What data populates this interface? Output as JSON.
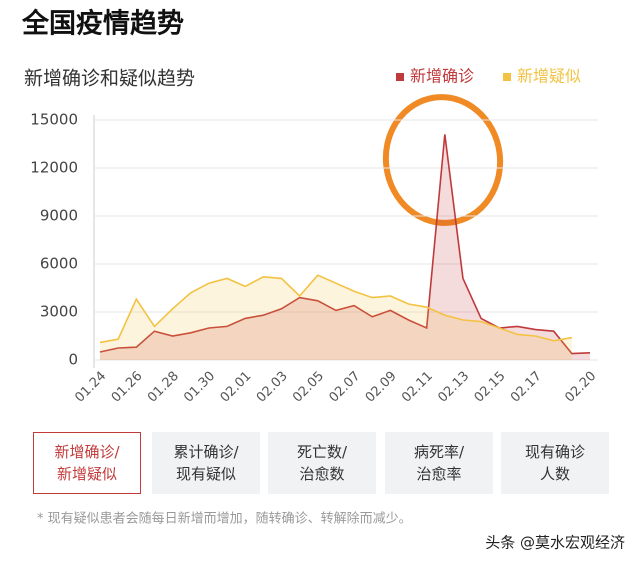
{
  "header": {
    "title": "全国疫情趋势"
  },
  "chart_data": {
    "type": "area-line",
    "title": "新增确诊和疑似趋势",
    "categories": [
      "01.24",
      null,
      "01.26",
      null,
      "01.28",
      null,
      "01.30",
      null,
      "02.01",
      null,
      "02.03",
      null,
      "02.05",
      null,
      "02.07",
      null,
      "02.09",
      null,
      "02.11",
      null,
      "02.13",
      null,
      "02.15",
      null,
      "02.17",
      null,
      null,
      "02.20"
    ],
    "series": [
      {
        "name": "新增确诊",
        "color": "#c0393b",
        "values": [
          500,
          750,
          800,
          1800,
          1500,
          1700,
          2000,
          2100,
          2600,
          2800,
          3200,
          3900,
          3700,
          3100,
          3400,
          2700,
          3100,
          2500,
          2000,
          14100,
          5100,
          2600,
          2000,
          2100,
          1900,
          1800,
          400,
          450
        ]
      },
      {
        "name": "新增疑似",
        "color": "#f3c242",
        "values": [
          1100,
          1300,
          3800,
          2100,
          3200,
          4200,
          4800,
          5100,
          4600,
          5200,
          5100,
          4000,
          5300,
          4800,
          4300,
          3900,
          4000,
          3500,
          3300,
          2800,
          2500,
          2400,
          2000,
          1600,
          1500,
          1200,
          1400,
          null
        ]
      }
    ],
    "ylim": [
      0,
      15000
    ],
    "yticks": [
      0,
      3000,
      6000,
      9000,
      12000,
      15000
    ],
    "grid": true,
    "legend": "top-right"
  },
  "tabs": [
    [
      "新增确诊/",
      "新增疑似"
    ],
    [
      "累计确诊/",
      "现有疑似"
    ],
    [
      "死亡数/",
      "治愈数"
    ],
    [
      "病死率/",
      "治愈率"
    ],
    [
      "现有确诊",
      "人数"
    ]
  ],
  "note": "* 现有疑似患者会随每日新增而增加，随转确诊、转解除而减少。",
  "watermark": "头条 @莫水宏观经济"
}
